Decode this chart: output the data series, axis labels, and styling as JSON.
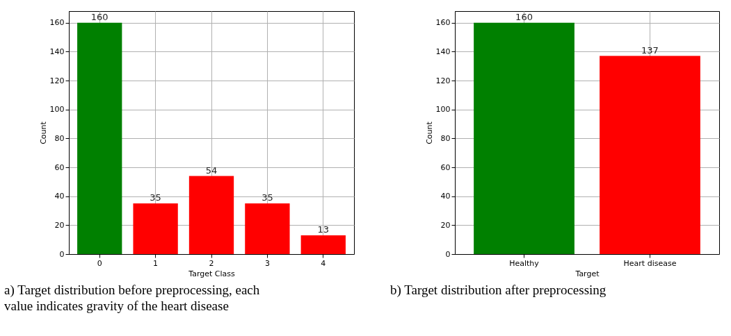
{
  "chart_data": [
    {
      "type": "bar",
      "xlabel": "Target Class",
      "ylabel": "Count",
      "categories": [
        "0",
        "1",
        "2",
        "3",
        "4"
      ],
      "values": [
        160,
        35,
        54,
        35,
        13
      ],
      "colors": [
        "#008000",
        "#ff0000",
        "#ff0000",
        "#ff0000",
        "#ff0000"
      ],
      "ylim": [
        0,
        168
      ],
      "yticks": [
        0,
        20,
        40,
        60,
        80,
        100,
        120,
        140,
        160
      ],
      "grid": true,
      "data_labels": true,
      "annotations": [
        "a) Target distribution before preprocessing, each value indicates gravity of the heart disease"
      ]
    },
    {
      "type": "bar",
      "xlabel": "Target",
      "ylabel": "Count",
      "categories": [
        "Healthy",
        "Heart disease"
      ],
      "values": [
        160,
        137
      ],
      "colors": [
        "#008000",
        "#ff0000"
      ],
      "ylim": [
        0,
        168
      ],
      "yticks": [
        0,
        20,
        40,
        60,
        80,
        100,
        120,
        140,
        160
      ],
      "grid": true,
      "data_labels": true,
      "annotations": [
        "b) Target distribution after preprocessing"
      ]
    }
  ]
}
